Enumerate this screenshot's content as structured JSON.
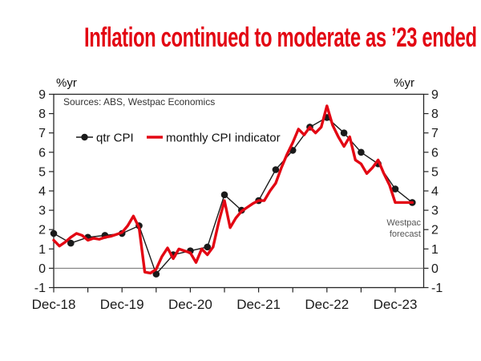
{
  "page": {
    "title": "Inflation continued to moderate as ’23 ended"
  },
  "chart": {
    "unit_left": "%yr",
    "unit_right": "%yr",
    "sources": "Sources: ABS, Westpac Economics",
    "forecast": {
      "line1": "Westpac",
      "line2": "forecast"
    },
    "colors": {
      "title_red": "#e30613",
      "monthly_red": "#e30613",
      "series_black": "#1a1a1a",
      "axis": "#262626"
    }
  },
  "chart_data": {
    "type": "line",
    "title": "Inflation continued to moderate as ’23 ended",
    "xlabel": "",
    "ylabel": "%yr",
    "ylim": [
      -1,
      9
    ],
    "y_ticks": [
      9,
      8,
      7,
      6,
      5,
      4,
      3,
      2,
      1,
      0,
      -1
    ],
    "x_tick_labels": [
      "Dec-18",
      "Dec-19",
      "Dec-20",
      "Dec-21",
      "Dec-22",
      "Dec-23"
    ],
    "grid": "zero-line-only",
    "legend_position": "upper-left-inside",
    "annotations": [
      "Westpac forecast"
    ],
    "series": [
      {
        "name": "qtr CPI",
        "color": "#1a1a1a",
        "marker": "circle",
        "width": 1.4,
        "step_months": 3,
        "x": [
          "Dec-18",
          "Mar-19",
          "Jun-19",
          "Sep-19",
          "Dec-19",
          "Mar-20",
          "Jun-20",
          "Sep-20",
          "Dec-20",
          "Mar-21",
          "Jun-21",
          "Sep-21",
          "Dec-21",
          "Mar-22",
          "Jun-22",
          "Sep-22",
          "Dec-22",
          "Mar-23",
          "Jun-23",
          "Sep-23",
          "Dec-23",
          "Mar-24"
        ],
        "values": [
          1.8,
          1.3,
          1.6,
          1.7,
          1.8,
          2.2,
          -0.3,
          0.7,
          0.9,
          1.1,
          3.8,
          3.0,
          3.5,
          5.1,
          6.1,
          7.3,
          7.8,
          7.0,
          6.0,
          5.4,
          4.1,
          3.4
        ]
      },
      {
        "name": "monthly CPI indicator",
        "color": "#e30613",
        "marker": "none",
        "width": 3.4,
        "step_months": 1,
        "x": [
          "Dec-18",
          "Jan-19",
          "Feb-19",
          "Mar-19",
          "Apr-19",
          "May-19",
          "Jun-19",
          "Jul-19",
          "Aug-19",
          "Sep-19",
          "Oct-19",
          "Nov-19",
          "Dec-19",
          "Jan-20",
          "Feb-20",
          "Mar-20",
          "Apr-20",
          "May-20",
          "Jun-20",
          "Jul-20",
          "Aug-20",
          "Sep-20",
          "Oct-20",
          "Nov-20",
          "Dec-20",
          "Jan-21",
          "Feb-21",
          "Mar-21",
          "Apr-21",
          "May-21",
          "Jun-21",
          "Jul-21",
          "Aug-21",
          "Sep-21",
          "Oct-21",
          "Nov-21",
          "Dec-21",
          "Jan-22",
          "Feb-22",
          "Mar-22",
          "Apr-22",
          "May-22",
          "Jun-22",
          "Jul-22",
          "Aug-22",
          "Sep-22",
          "Oct-22",
          "Nov-22",
          "Dec-22",
          "Jan-23",
          "Feb-23",
          "Mar-23",
          "Apr-23",
          "May-23",
          "Jun-23",
          "Jul-23",
          "Aug-23",
          "Sep-23",
          "Oct-23",
          "Nov-23",
          "Dec-23",
          "Jan-24",
          "Feb-24",
          "Mar-24"
        ],
        "values": [
          1.45,
          1.15,
          1.35,
          1.6,
          1.8,
          1.7,
          1.45,
          1.55,
          1.5,
          1.6,
          1.65,
          1.75,
          1.85,
          2.2,
          2.7,
          2.1,
          -0.2,
          -0.25,
          -0.05,
          0.6,
          1.05,
          0.5,
          1.0,
          0.9,
          0.8,
          0.3,
          1.0,
          0.7,
          1.1,
          2.4,
          3.5,
          2.1,
          2.6,
          2.95,
          3.15,
          3.35,
          3.5,
          3.5,
          4.0,
          4.4,
          5.2,
          5.9,
          6.5,
          7.2,
          6.9,
          7.3,
          7.0,
          7.3,
          8.4,
          7.4,
          6.8,
          6.3,
          6.8,
          5.6,
          5.4,
          4.9,
          5.2,
          5.6,
          4.9,
          4.3,
          3.4,
          3.4,
          3.4,
          3.4
        ]
      }
    ]
  }
}
